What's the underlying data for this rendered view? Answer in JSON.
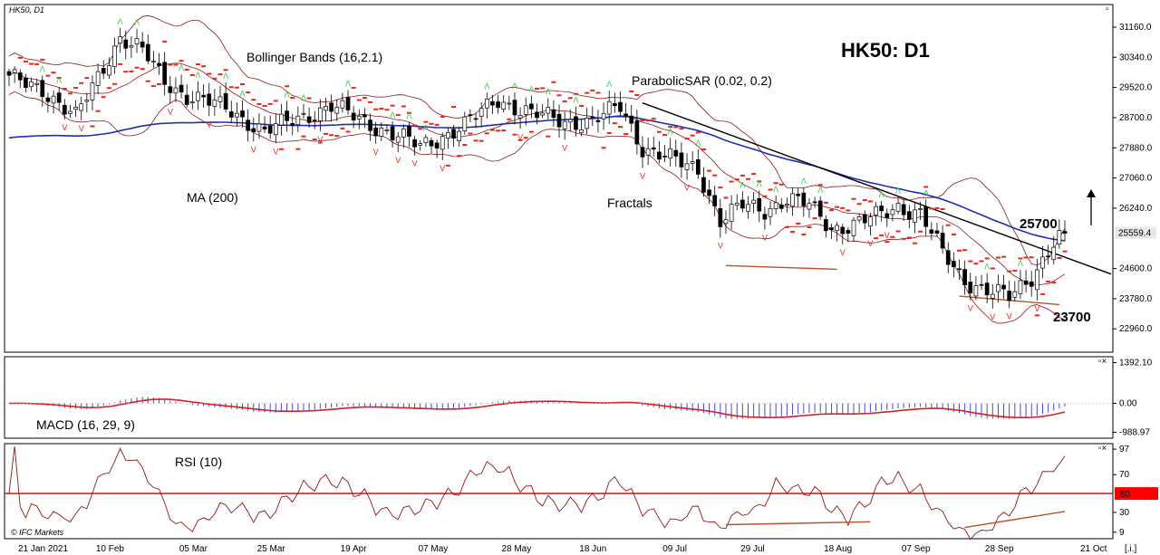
{
  "window_label": "HK50, D1",
  "chart_title": "HK50: D1",
  "copyright": "© IFC Markets",
  "corner_glyphs": {
    "main": "▫",
    "pane": "▫×",
    "scroll": "[.i.]"
  },
  "colors": {
    "ma": "#1f2fae",
    "bollinger": "#8b1a1a",
    "sar": "#e8261a",
    "fractal_up": "#2ecc40",
    "fractal_down": "#e8261a",
    "signal": "#d42020",
    "histogram": "#4a4ac8",
    "trend": "#000000",
    "support": "#b5542a",
    "price_tag": "#e8e8e8",
    "rsi_tag": "#ff0000"
  },
  "chart_data": {
    "type": "candlestick",
    "symbol": "HK50",
    "timeframe": "D1",
    "price_axis": {
      "ticks": [
        "31160.0",
        "30340.0",
        "29520.0",
        "28700.0",
        "27880.0",
        "27060.0",
        "26240.0",
        "24600.0",
        "23780.0",
        "22960.0"
      ],
      "range": [
        22400,
        31700
      ]
    },
    "current_price": "25559.4",
    "date_ticks": [
      "21 Jan 2021",
      "10 Feb",
      "05 Mar",
      "25 Mar",
      "19 Apr",
      "07 May",
      "28 May",
      "18 Jun",
      "09 Jul",
      "29 Jul",
      "18 Aug",
      "07 Sep",
      "28 Sep",
      "21 Oct"
    ],
    "close_keypoints": [
      [
        0,
        29750
      ],
      [
        6,
        29500
      ],
      [
        12,
        28700
      ],
      [
        20,
        30900
      ],
      [
        24,
        30500
      ],
      [
        28,
        29700
      ],
      [
        32,
        29300
      ],
      [
        40,
        28900
      ],
      [
        46,
        28300
      ],
      [
        52,
        28700
      ],
      [
        58,
        29000
      ],
      [
        64,
        28600
      ],
      [
        70,
        28200
      ],
      [
        74,
        27900
      ],
      [
        82,
        28500
      ],
      [
        88,
        29200
      ],
      [
        94,
        28800
      ],
      [
        100,
        28600
      ],
      [
        105,
        28600
      ],
      [
        110,
        29000
      ],
      [
        114,
        27900
      ],
      [
        120,
        27500
      ],
      [
        124,
        27300
      ],
      [
        128,
        25900
      ],
      [
        132,
        26300
      ],
      [
        136,
        26200
      ],
      [
        140,
        26500
      ],
      [
        144,
        26300
      ],
      [
        148,
        25700
      ],
      [
        152,
        25800
      ],
      [
        156,
        26000
      ],
      [
        160,
        26300
      ],
      [
        164,
        26100
      ],
      [
        168,
        25000
      ],
      [
        172,
        24300
      ],
      [
        176,
        24000
      ],
      [
        180,
        23800
      ],
      [
        184,
        24400
      ],
      [
        188,
        25300
      ],
      [
        190,
        25559
      ]
    ],
    "indicators": {
      "bollinger": {
        "label": "Bollinger Bands (16,2.1)"
      },
      "parabolic_sar": {
        "label": "ParabolicSAR (0.02, 0.2)"
      },
      "moving_average": {
        "label": "MA (200)"
      },
      "fractals": {
        "label": "Fractals"
      }
    },
    "levels": {
      "resistance": "25700",
      "support": "23700"
    },
    "macd": {
      "label": "MACD (16, 29, 9)",
      "axis_ticks": [
        "1392.10",
        "0.00",
        "-988.97"
      ],
      "range": [
        -1100,
        1500
      ]
    },
    "rsi": {
      "label": "RSI (10)",
      "axis_ticks": [
        "97",
        "70",
        "30",
        "9"
      ],
      "marker": "50",
      "range": [
        5,
        99
      ]
    }
  }
}
